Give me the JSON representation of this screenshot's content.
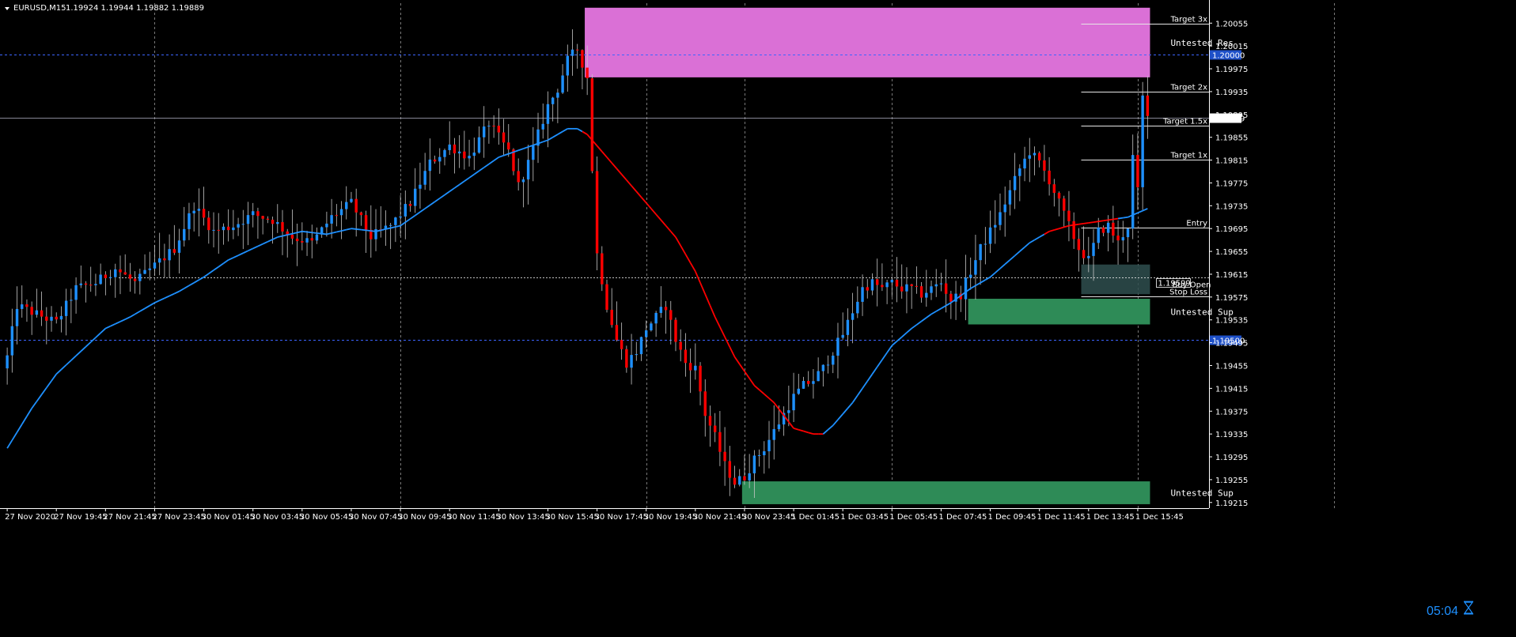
{
  "header": {
    "symbol": "EURUSD,M15",
    "ohlc": "1.19924 1.19944 1.19882 1.19889"
  },
  "timer": "05:04",
  "colors": {
    "background": "#000000",
    "bull": "#1e90ff",
    "bear": "#ff0000",
    "wick": "#c8c8c8",
    "ema_up": "#1e90ff",
    "ema_down": "#ff0000",
    "resistance_zone": "#da70d6",
    "support_zone": "#2e8b57",
    "entry_zone": "#2f4f4f",
    "grid": "#c8c8c8",
    "level_line": "#3c64ff",
    "price_tag_bg": "#1e50c8"
  },
  "zones": [
    {
      "label": "Untested Res",
      "top": 1.20082,
      "bottom": 1.1996,
      "start": 118,
      "end": 232,
      "color": "resistance_zone"
    },
    {
      "label": "Untested Sup",
      "top": 1.19572,
      "bottom": 1.19527,
      "start": 196,
      "end": 232,
      "color": "support_zone"
    },
    {
      "label": "Untested Sup",
      "top": 1.19252,
      "bottom": 1.19212,
      "start": 150,
      "end": 232,
      "color": "support_zone"
    }
  ],
  "trade_levels": [
    {
      "label": "Target 3x",
      "price": 1.20054
    },
    {
      "label": "Target 2x",
      "price": 1.19935
    },
    {
      "label": "Target 1.5x",
      "price": 1.19875
    },
    {
      "label": "Target 1x",
      "price": 1.19816
    },
    {
      "label": "Entry",
      "price": 1.19696
    },
    {
      "label": "Stop Loss",
      "price": 1.19576
    }
  ],
  "entry_box": {
    "top": 1.19632,
    "bottom": 1.1958,
    "start": 219,
    "end": 232,
    "text": "1.19599",
    "text2": "Buy Open"
  },
  "horizontal_lines": [
    {
      "price": 1.2,
      "tag": "1.20000"
    },
    {
      "price": 1.195,
      "tag": "1.19500"
    }
  ],
  "current_price": {
    "price": 1.19889,
    "tag": "1.19889"
  },
  "chart_data": {
    "type": "candlestick",
    "symbol": "EURUSD",
    "timeframe": "M15",
    "ylim": [
      1.19205,
      1.2009
    ],
    "y_ticks": [
      "1.20055",
      "1.20015",
      "1.19975",
      "1.19935",
      "1.19895",
      "1.19855",
      "1.19815",
      "1.19775",
      "1.19735",
      "1.19695",
      "1.19655",
      "1.19615",
      "1.19575",
      "1.19535",
      "1.19495",
      "1.19455",
      "1.19415",
      "1.19375",
      "1.19335",
      "1.19295",
      "1.19255",
      "1.19215"
    ],
    "x_ticks": [
      {
        "i": 0,
        "label": "27 Nov 2020"
      },
      {
        "i": 10,
        "label": "27 Nov 19:45"
      },
      {
        "i": 20,
        "label": "27 Nov 21:45"
      },
      {
        "i": 30,
        "label": "27 Nov 23:45"
      },
      {
        "i": 40,
        "label": "30 Nov 01:45"
      },
      {
        "i": 50,
        "label": "30 Nov 03:45"
      },
      {
        "i": 60,
        "label": "30 Nov 05:45"
      },
      {
        "i": 70,
        "label": "30 Nov 07:45"
      },
      {
        "i": 80,
        "label": "30 Nov 09:45"
      },
      {
        "i": 90,
        "label": "30 Nov 11:45"
      },
      {
        "i": 100,
        "label": "30 Nov 13:45"
      },
      {
        "i": 110,
        "label": "30 Nov 15:45"
      },
      {
        "i": 120,
        "label": "30 Nov 17:45"
      },
      {
        "i": 130,
        "label": "30 Nov 19:45"
      },
      {
        "i": 140,
        "label": "30 Nov 21:45"
      },
      {
        "i": 150,
        "label": "30 Nov 23:45"
      },
      {
        "i": 160,
        "label": "1 Dec 01:45"
      },
      {
        "i": 170,
        "label": "1 Dec 03:45"
      },
      {
        "i": 180,
        "label": "1 Dec 05:45"
      },
      {
        "i": 190,
        "label": "1 Dec 07:45"
      },
      {
        "i": 200,
        "label": "1 Dec 09:45"
      },
      {
        "i": 210,
        "label": "1 Dec 11:45"
      },
      {
        "i": 220,
        "label": "1 Dec 13:45"
      },
      {
        "i": 230,
        "label": "1 Dec 15:45"
      }
    ],
    "close_anchors": [
      [
        0,
        1.1947
      ],
      [
        2,
        1.1956
      ],
      [
        6,
        1.19545
      ],
      [
        10,
        1.1953
      ],
      [
        14,
        1.1959
      ],
      [
        18,
        1.196
      ],
      [
        22,
        1.19625
      ],
      [
        26,
        1.196
      ],
      [
        30,
        1.1963
      ],
      [
        34,
        1.1966
      ],
      [
        38,
        1.19735
      ],
      [
        42,
        1.1969
      ],
      [
        46,
        1.197
      ],
      [
        50,
        1.1972
      ],
      [
        54,
        1.1971
      ],
      [
        58,
        1.1968
      ],
      [
        62,
        1.1967
      ],
      [
        66,
        1.19715
      ],
      [
        70,
        1.1974
      ],
      [
        74,
        1.1968
      ],
      [
        78,
        1.197
      ],
      [
        82,
        1.1974
      ],
      [
        86,
        1.1981
      ],
      [
        90,
        1.1984
      ],
      [
        94,
        1.1982
      ],
      [
        98,
        1.1988
      ],
      [
        102,
        1.1983
      ],
      [
        104,
        1.1977
      ],
      [
        106,
        1.1981
      ],
      [
        108,
        1.1986
      ],
      [
        110,
        1.1991
      ],
      [
        112,
        1.1994
      ],
      [
        114,
        1.1999
      ],
      [
        116,
        1.2001
      ],
      [
        118,
        1.1996
      ],
      [
        119,
        1.198
      ],
      [
        120,
        1.1965
      ],
      [
        122,
        1.1956
      ],
      [
        124,
        1.195
      ],
      [
        126,
        1.1946
      ],
      [
        128,
        1.1948
      ],
      [
        130,
        1.1952
      ],
      [
        132,
        1.1954
      ],
      [
        134,
        1.1956
      ],
      [
        136,
        1.195
      ],
      [
        138,
        1.1946
      ],
      [
        140,
        1.1945
      ],
      [
        142,
        1.1937
      ],
      [
        144,
        1.1933
      ],
      [
        146,
        1.1928
      ],
      [
        148,
        1.1925
      ],
      [
        150,
        1.1926
      ],
      [
        152,
        1.1929
      ],
      [
        154,
        1.1931
      ],
      [
        156,
        1.1934
      ],
      [
        158,
        1.1937
      ],
      [
        160,
        1.194
      ],
      [
        162,
        1.1942
      ],
      [
        164,
        1.1943
      ],
      [
        166,
        1.1945
      ],
      [
        168,
        1.1948
      ],
      [
        170,
        1.1951
      ],
      [
        172,
        1.1955
      ],
      [
        174,
        1.1959
      ],
      [
        176,
        1.196
      ],
      [
        178,
        1.1959
      ],
      [
        180,
        1.196
      ],
      [
        182,
        1.1959
      ],
      [
        184,
        1.1959
      ],
      [
        186,
        1.1958
      ],
      [
        188,
        1.1959
      ],
      [
        190,
        1.196
      ],
      [
        192,
        1.1957
      ],
      [
        194,
        1.1958
      ],
      [
        196,
        1.1962
      ],
      [
        198,
        1.1966
      ],
      [
        200,
        1.1969
      ],
      [
        202,
        1.1972
      ],
      [
        204,
        1.1976
      ],
      [
        206,
        1.198
      ],
      [
        208,
        1.1983
      ],
      [
        210,
        1.1981
      ],
      [
        212,
        1.1978
      ],
      [
        214,
        1.1974
      ],
      [
        216,
        1.197
      ],
      [
        218,
        1.1966
      ],
      [
        220,
        1.1964
      ],
      [
        222,
        1.1969
      ],
      [
        224,
        1.197
      ],
      [
        226,
        1.1967
      ],
      [
        228,
        1.197
      ],
      [
        229,
        1.1982
      ],
      [
        230,
        1.1976
      ],
      [
        231,
        1.19924
      ],
      [
        232,
        1.19889
      ]
    ],
    "ema_anchors": [
      [
        0,
        1.1931
      ],
      [
        5,
        1.1938
      ],
      [
        10,
        1.1944
      ],
      [
        15,
        1.1948
      ],
      [
        20,
        1.1952
      ],
      [
        25,
        1.1954
      ],
      [
        30,
        1.19565
      ],
      [
        35,
        1.19585
      ],
      [
        40,
        1.1961
      ],
      [
        45,
        1.1964
      ],
      [
        50,
        1.1966
      ],
      [
        55,
        1.1968
      ],
      [
        60,
        1.1969
      ],
      [
        65,
        1.19685
      ],
      [
        70,
        1.19695
      ],
      [
        75,
        1.1969
      ],
      [
        80,
        1.197
      ],
      [
        85,
        1.1973
      ],
      [
        90,
        1.1976
      ],
      [
        95,
        1.1979
      ],
      [
        100,
        1.1982
      ],
      [
        105,
        1.19835
      ],
      [
        110,
        1.1985
      ],
      [
        114,
        1.1987
      ],
      [
        116,
        1.1987
      ],
      [
        118,
        1.1986
      ],
      [
        120,
        1.1984
      ],
      [
        124,
        1.198
      ],
      [
        128,
        1.1976
      ],
      [
        132,
        1.1972
      ],
      [
        136,
        1.1968
      ],
      [
        140,
        1.1962
      ],
      [
        144,
        1.1954
      ],
      [
        148,
        1.1947
      ],
      [
        152,
        1.1942
      ],
      [
        156,
        1.1939
      ],
      [
        160,
        1.19345
      ],
      [
        164,
        1.19335
      ],
      [
        166,
        1.19335
      ],
      [
        168,
        1.1935
      ],
      [
        172,
        1.1939
      ],
      [
        176,
        1.1944
      ],
      [
        180,
        1.1949
      ],
      [
        184,
        1.1952
      ],
      [
        188,
        1.19545
      ],
      [
        192,
        1.19565
      ],
      [
        196,
        1.1959
      ],
      [
        200,
        1.1961
      ],
      [
        204,
        1.1964
      ],
      [
        208,
        1.1967
      ],
      [
        212,
        1.1969
      ],
      [
        216,
        1.197
      ],
      [
        220,
        1.19705
      ],
      [
        224,
        1.1971
      ],
      [
        228,
        1.19715
      ],
      [
        232,
        1.1973
      ]
    ],
    "ema_red_range": [
      [
        117,
        165
      ],
      [
        211,
        225
      ]
    ],
    "last_index": 232
  }
}
